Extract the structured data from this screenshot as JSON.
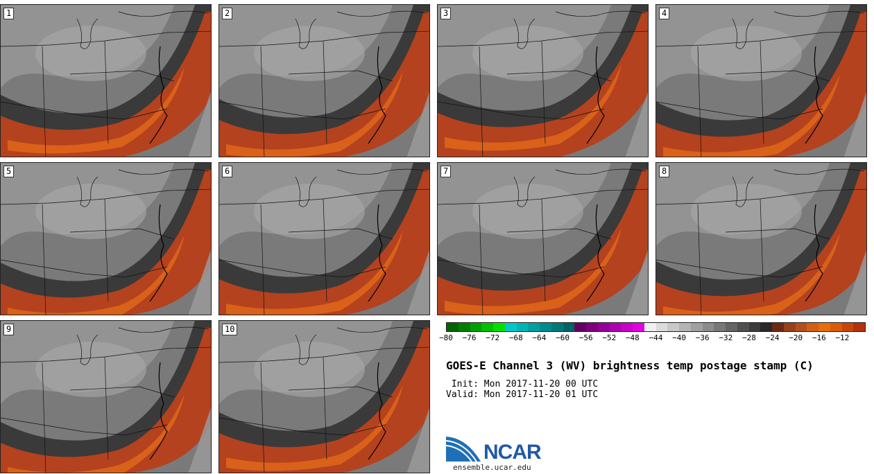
{
  "panels": [
    {
      "label": "1"
    },
    {
      "label": "2"
    },
    {
      "label": "3"
    },
    {
      "label": "4"
    },
    {
      "label": "5"
    },
    {
      "label": "6"
    },
    {
      "label": "7"
    },
    {
      "label": "8"
    },
    {
      "label": "9"
    },
    {
      "label": "10"
    }
  ],
  "colorbar": {
    "colors": [
      "#006400",
      "#008000",
      "#00a000",
      "#00c000",
      "#00e000",
      "#00c8c8",
      "#00b4b4",
      "#00a0a0",
      "#008c8c",
      "#007878",
      "#006464",
      "#640064",
      "#7d007d",
      "#960096",
      "#af00af",
      "#c800c8",
      "#e100e1",
      "#f0f0f0",
      "#dcdcdc",
      "#c8c8c8",
      "#b4b4b4",
      "#a0a0a0",
      "#8c8c8c",
      "#787878",
      "#646464",
      "#505050",
      "#3c3c3c",
      "#282828",
      "#6e2814",
      "#964119",
      "#b4501e",
      "#d25f14",
      "#e66e0f",
      "#dc5a0a",
      "#c8460a",
      "#b4320a"
    ],
    "tick_labels": [
      "−80",
      "−76",
      "−72",
      "−68",
      "−64",
      "−60",
      "−56",
      "−52",
      "−48",
      "−44",
      "−40",
      "−36",
      "−32",
      "−28",
      "−24",
      "−20",
      "−16",
      "−12"
    ]
  },
  "title": "GOES-E Channel 3 (WV) brightness temp postage stamp (C)",
  "init_line": " Init: Mon 2017-11-20 00 UTC",
  "valid_line": "Valid: Mon 2017-11-20 01 UTC",
  "logo_text": "NCAR",
  "url": "ensemble.ucar.edu",
  "colors": {
    "band_dark": "#3a3a3a",
    "band_orange": "#b4421e",
    "band_bright": "#e0661a",
    "gray_light": "#9a9a9a",
    "gray_mid": "#7a7a7a",
    "map_line": "#111111"
  }
}
